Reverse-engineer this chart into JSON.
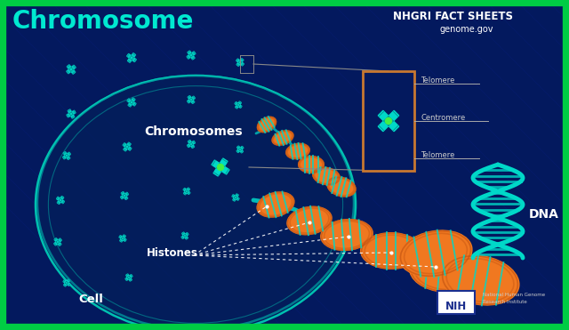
{
  "bg_color": "#03195e",
  "border_color": "#00cc44",
  "title_text": "Chromosome",
  "title_color": "#00e8d0",
  "title_fontsize": 20,
  "nhgri_text": "NHGRI FACT SHEETS",
  "genome_text": "genome.gov",
  "header_text_color": "#ffffff",
  "chromosomes_label": "Chromosomes",
  "histones_label": "Histones",
  "cell_label": "Cell",
  "dna_label": "DNA",
  "telomere_label": "Telomere",
  "centromere_label": "Centromere",
  "chromosome_color": "#00d8c8",
  "orange_color": "#f07820",
  "green_dot_color": "#44ee44",
  "label_color": "#ffffff",
  "dna_color": "#00d8c8",
  "ellipse_color": "#00aaaa",
  "box_color": "#c87830"
}
